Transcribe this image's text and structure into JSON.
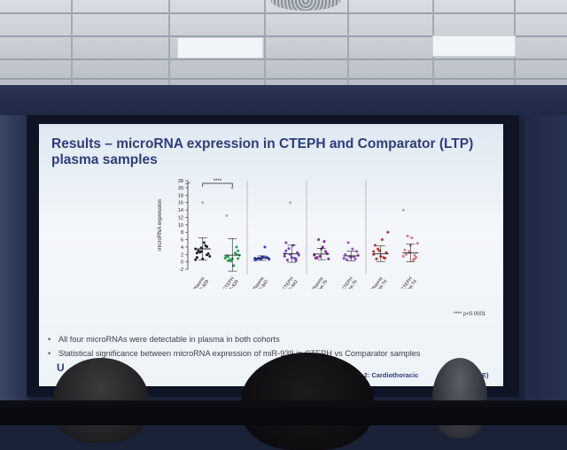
{
  "slide": {
    "title": "Results – microRNA expression in CTEPH and Comparator (LTP) plasma samples",
    "bullets": [
      "All four microRNAs were detectable in plasma in both cohorts",
      "Statistical significance between microRNA expression of miR-939 in CTEPH vs Comparator samples"
    ],
    "significance_note": "**** p<0.0001",
    "footer_left_partial": "U",
    "footer_right_partial": "n 2: Cardiothoracic",
    "footer_right_partial_2": "CME)"
  },
  "chart_data": {
    "type": "scatter",
    "ylabel": "microRNA expression",
    "y_ticks": [
      "-2",
      "0",
      "2",
      "4",
      "6",
      "8",
      "10",
      "12",
      "14",
      "16",
      "18",
      "20",
      "28"
    ],
    "categories": [
      "Comp. Plasma miR-939",
      "CTEPH miR-939",
      "Comp. Plasma miR-942",
      "CTEPH miR-942",
      "Comp. Plasma let-7b",
      "CTEPH let-7b",
      "Comp. Plasma let-7d",
      "CTEPH let-7d"
    ],
    "series_colors": [
      "#222222",
      "#2e9e4a",
      "#3040c8",
      "#7a3fbf",
      "#7a2f8f",
      "#9a4fd0",
      "#c0302a",
      "#d77a7a"
    ],
    "points": [
      [
        3.5,
        2.8,
        4.1,
        1.2,
        0.8,
        2.2,
        3.0,
        5.2,
        1.5,
        2.6,
        4.4,
        0.6,
        3.8,
        1.9,
        2.4,
        16
      ],
      [
        1.0,
        0.5,
        2.0,
        1.5,
        0.8,
        3.0,
        0.3,
        -1.0,
        1.8,
        0.6,
        2.4,
        1.1,
        0.2,
        4.0,
        12.5,
        20.5,
        0.9,
        1.4
      ],
      [
        1.0,
        0.8,
        1.2,
        0.6,
        1.4,
        1.1,
        0.9,
        1.3,
        0.7,
        1.0,
        4.0,
        0.5
      ],
      [
        1.5,
        2.0,
        0.8,
        3.0,
        1.2,
        2.5,
        0.5,
        4.5,
        1.8,
        3.6,
        1.0,
        2.2,
        16,
        0.3,
        5.2
      ],
      [
        2.0,
        1.5,
        2.8,
        1.0,
        3.5,
        2.2,
        1.2,
        4.0,
        0.8,
        6.0,
        5.5,
        1.8
      ],
      [
        1.0,
        1.5,
        0.8,
        2.0,
        1.2,
        2.8,
        0.6,
        3.5,
        1.8,
        5.2,
        1.4,
        0.9
      ],
      [
        2.0,
        3.0,
        1.0,
        4.5,
        1.5,
        2.5,
        0.8,
        6.0,
        8.0,
        3.5,
        1.2,
        2.8
      ],
      [
        1.5,
        2.5,
        0.8,
        3.2,
        4.5,
        1.2,
        2.0,
        6.5,
        5.0,
        7.0,
        0.5,
        14,
        2.8,
        1.8
      ]
    ],
    "means": [
      3.5,
      1.8,
      1.0,
      2.2,
      2.1,
      1.6,
      2.2,
      2.4
    ],
    "sd_upper": [
      6.5,
      6.3,
      1.6,
      4.5,
      3.6,
      2.9,
      4.3,
      4.8
    ],
    "sd_lower": [
      0.5,
      -2.5,
      0.4,
      -0.1,
      0.6,
      0.3,
      0.1,
      0.0
    ],
    "bracket_label": "****"
  }
}
